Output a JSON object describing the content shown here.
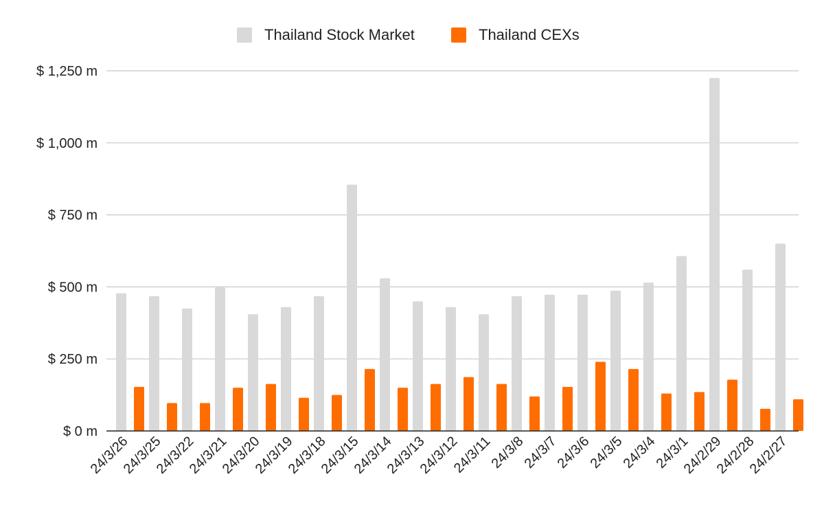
{
  "chart_data": {
    "type": "bar",
    "title": "",
    "xlabel": "",
    "ylabel": "",
    "ylim": [
      0,
      1250
    ],
    "yticks": [
      0,
      250,
      500,
      750,
      1000,
      1250
    ],
    "ytick_labels": [
      "$ 0 m",
      "$ 250 m",
      "$ 500 m",
      "$ 750 m",
      "$ 1,000 m",
      "$ 1,250 m"
    ],
    "grid": true,
    "legend_position": "top-center",
    "categories": [
      "24/3/26",
      "24/3/25",
      "24/3/22",
      "24/3/21",
      "24/3/20",
      "24/3/19",
      "24/3/18",
      "24/3/15",
      "24/3/14",
      "24/3/13",
      "24/3/12",
      "24/3/11",
      "24/3/8",
      "24/3/7",
      "24/3/6",
      "24/3/5",
      "24/3/4",
      "24/3/1",
      "24/2/29",
      "24/2/28",
      "24/2/27"
    ],
    "series": [
      {
        "name": "Thailand Stock Market",
        "color": "#d9d9d9",
        "values": [
          478,
          468,
          425,
          498,
          405,
          430,
          468,
          855,
          530,
          450,
          430,
          405,
          468,
          473,
          473,
          487,
          515,
          607,
          1225,
          560,
          650
        ]
      },
      {
        "name": "Thailand CEXs",
        "color": "#ff6d01",
        "values": [
          153,
          97,
          97,
          150,
          163,
          115,
          125,
          215,
          150,
          163,
          187,
          163,
          120,
          153,
          240,
          215,
          130,
          135,
          178,
          77,
          110
        ]
      }
    ]
  }
}
